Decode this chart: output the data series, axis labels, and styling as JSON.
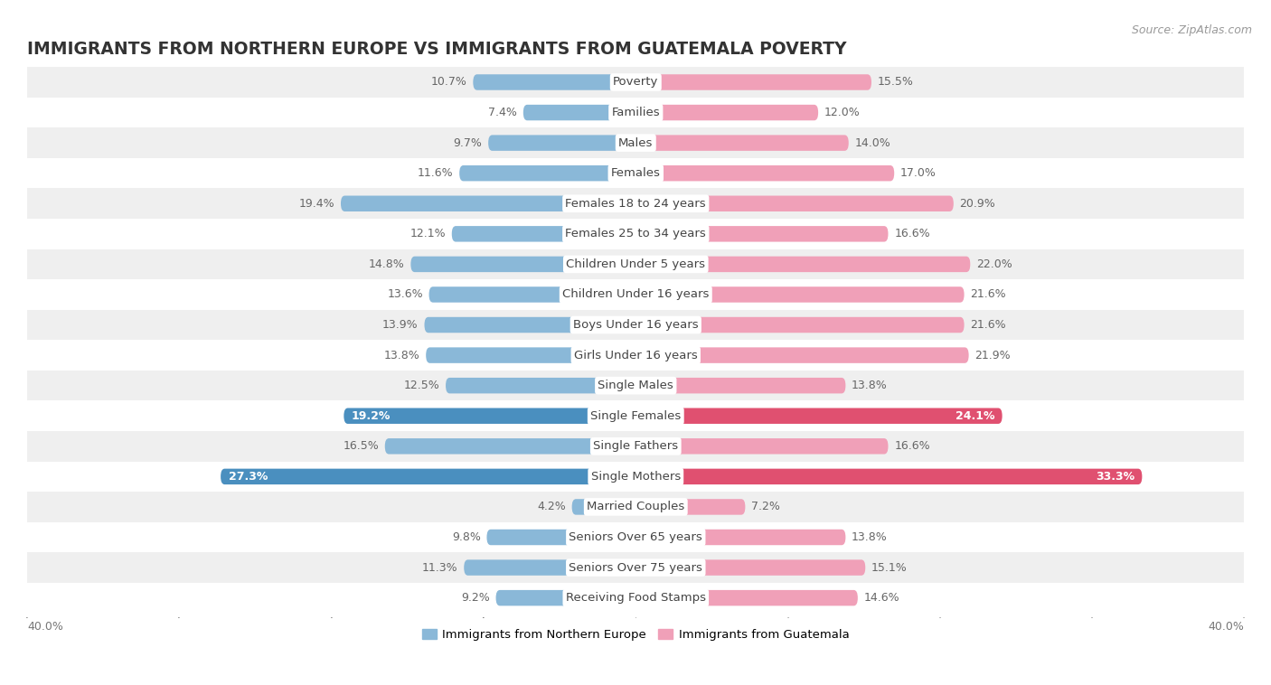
{
  "title": "IMMIGRANTS FROM NORTHERN EUROPE VS IMMIGRANTS FROM GUATEMALA POVERTY",
  "source": "Source: ZipAtlas.com",
  "categories": [
    "Poverty",
    "Families",
    "Males",
    "Females",
    "Females 18 to 24 years",
    "Females 25 to 34 years",
    "Children Under 5 years",
    "Children Under 16 years",
    "Boys Under 16 years",
    "Girls Under 16 years",
    "Single Males",
    "Single Females",
    "Single Fathers",
    "Single Mothers",
    "Married Couples",
    "Seniors Over 65 years",
    "Seniors Over 75 years",
    "Receiving Food Stamps"
  ],
  "left_values": [
    10.7,
    7.4,
    9.7,
    11.6,
    19.4,
    12.1,
    14.8,
    13.6,
    13.9,
    13.8,
    12.5,
    19.2,
    16.5,
    27.3,
    4.2,
    9.8,
    11.3,
    9.2
  ],
  "right_values": [
    15.5,
    12.0,
    14.0,
    17.0,
    20.9,
    16.6,
    22.0,
    21.6,
    21.6,
    21.9,
    13.8,
    24.1,
    16.6,
    33.3,
    7.2,
    13.8,
    15.1,
    14.6
  ],
  "left_color": "#8ab8d8",
  "right_color": "#f0a0b8",
  "left_color_highlight": "#4a8fbf",
  "right_color_highlight": "#e05070",
  "highlight_rows": [
    11,
    13
  ],
  "left_label": "Immigrants from Northern Europe",
  "right_label": "Immigrants from Guatemala",
  "axis_max": 40.0,
  "bg_color_odd": "#efefef",
  "bg_color_even": "#ffffff",
  "bar_height": 0.52,
  "title_fontsize": 13.5,
  "label_fontsize": 9.5,
  "value_fontsize": 9,
  "source_fontsize": 9
}
